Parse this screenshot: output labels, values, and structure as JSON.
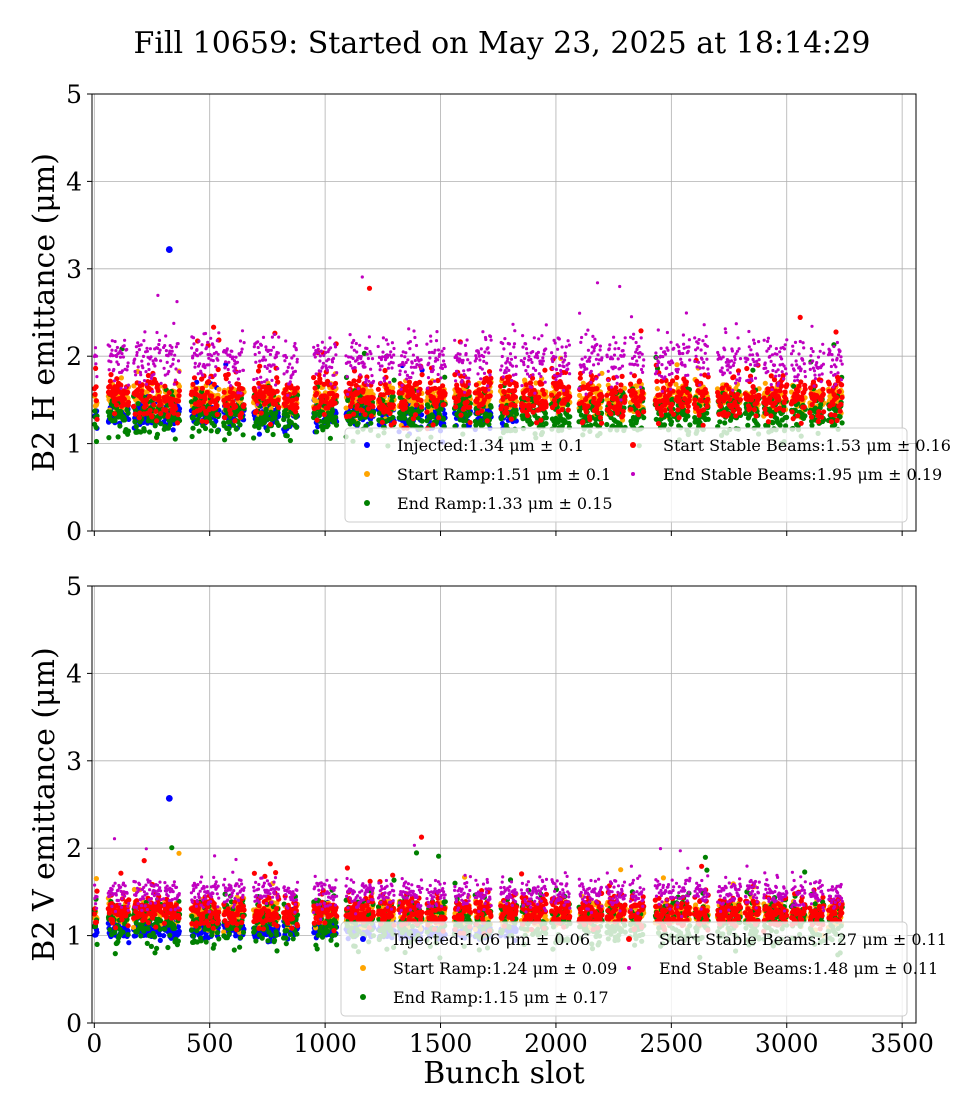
{
  "title": "Fill 10659: Started on May 23, 2025 at 18:14:29",
  "chart_data": [
    {
      "type": "scatter",
      "ylabel": "B2 H emittance (μm)",
      "xlabel": "",
      "xlim": [
        -10,
        3560
      ],
      "ylim": [
        0,
        5
      ],
      "xticks": [
        "0",
        "500",
        "1000",
        "1500",
        "2000",
        "2500",
        "3000",
        "3500"
      ],
      "yticks": [
        "0",
        "1",
        "2",
        "3",
        "4",
        "5"
      ],
      "grid": true,
      "legend_position": "lower-right",
      "trains": [
        [
          0,
          12
        ],
        [
          60,
          150
        ],
        [
          170,
          290
        ],
        [
          300,
          370
        ],
        [
          420,
          540
        ],
        [
          560,
          650
        ],
        [
          690,
          800
        ],
        [
          820,
          880
        ],
        [
          950,
          1050
        ],
        [
          1090,
          1210
        ],
        [
          1230,
          1300
        ],
        [
          1320,
          1420
        ],
        [
          1440,
          1520
        ],
        [
          1560,
          1630
        ],
        [
          1650,
          1720
        ],
        [
          1760,
          1830
        ],
        [
          1850,
          1960
        ],
        [
          1980,
          2060
        ],
        [
          2100,
          2200
        ],
        [
          2220,
          2300
        ],
        [
          2320,
          2380
        ],
        [
          2430,
          2510
        ],
        [
          2520,
          2580
        ],
        [
          2600,
          2660
        ],
        [
          2700,
          2800
        ],
        [
          2820,
          2880
        ],
        [
          2900,
          3000
        ],
        [
          3020,
          3080
        ],
        [
          3100,
          3160
        ],
        [
          3180,
          3240
        ]
      ],
      "outliers": {
        "x": [
          325
        ],
        "y": [
          3.22
        ],
        "series": "Injected"
      },
      "series": [
        {
          "name": "Injected",
          "legend": "Injected:1.34 μm ± 0.1",
          "color": "#0000ff",
          "mean": 1.34,
          "std": 0.1,
          "marker_size": 2.6,
          "extent": 1850
        },
        {
          "name": "Start Ramp",
          "legend": "Start Ramp:1.51 μm ± 0.1",
          "color": "#ffa500",
          "mean": 1.51,
          "std": 0.1,
          "marker_size": 2.6,
          "extent": 3240
        },
        {
          "name": "End Ramp",
          "legend": "End Ramp:1.33 μm ± 0.15",
          "color": "#008000",
          "mean": 1.33,
          "std": 0.15,
          "marker_size": 2.6,
          "extent": 3240
        },
        {
          "name": "Start Stable Beams",
          "legend": "Start Stable Beams:1.53 μm ± 0.16",
          "color": "#ff0000",
          "mean": 1.53,
          "std": 0.16,
          "marker_size": 2.6,
          "extent": 3240
        },
        {
          "name": "End Stable Beams",
          "legend": "End Stable Beams:1.95 μm ± 0.19",
          "color": "#c000c0",
          "mean": 1.95,
          "std": 0.19,
          "marker_size": 1.6,
          "extent": 3240
        }
      ]
    },
    {
      "type": "scatter",
      "ylabel": "B2 V emittance (μm)",
      "xlabel": "Bunch slot",
      "xlim": [
        -10,
        3560
      ],
      "ylim": [
        0,
        5
      ],
      "xticks": [
        "0",
        "500",
        "1000",
        "1500",
        "2000",
        "2500",
        "3000",
        "3500"
      ],
      "yticks": [
        "0",
        "1",
        "2",
        "3",
        "4",
        "5"
      ],
      "grid": true,
      "legend_position": "lower-right",
      "trains": [
        [
          0,
          12
        ],
        [
          60,
          150
        ],
        [
          170,
          290
        ],
        [
          300,
          370
        ],
        [
          420,
          540
        ],
        [
          560,
          650
        ],
        [
          690,
          800
        ],
        [
          820,
          880
        ],
        [
          950,
          1050
        ],
        [
          1090,
          1210
        ],
        [
          1230,
          1300
        ],
        [
          1320,
          1420
        ],
        [
          1440,
          1520
        ],
        [
          1560,
          1630
        ],
        [
          1650,
          1720
        ],
        [
          1760,
          1830
        ],
        [
          1850,
          1960
        ],
        [
          1980,
          2060
        ],
        [
          2100,
          2200
        ],
        [
          2220,
          2300
        ],
        [
          2320,
          2380
        ],
        [
          2430,
          2510
        ],
        [
          2520,
          2580
        ],
        [
          2600,
          2660
        ],
        [
          2700,
          2800
        ],
        [
          2820,
          2880
        ],
        [
          2900,
          3000
        ],
        [
          3020,
          3080
        ],
        [
          3100,
          3160
        ],
        [
          3180,
          3240
        ]
      ],
      "outliers": {
        "x": [
          325
        ],
        "y": [
          2.57
        ],
        "series": "Injected"
      },
      "series": [
        {
          "name": "Injected",
          "legend": "Injected:1.06 μm ± 0.06",
          "color": "#0000ff",
          "mean": 1.06,
          "std": 0.06,
          "marker_size": 2.6,
          "extent": 1850
        },
        {
          "name": "Start Ramp",
          "legend": "Start Ramp:1.24 μm ± 0.09",
          "color": "#ffa500",
          "mean": 1.24,
          "std": 0.09,
          "marker_size": 2.6,
          "extent": 3240
        },
        {
          "name": "End Ramp",
          "legend": "End Ramp:1.15 μm ± 0.17",
          "color": "#008000",
          "mean": 1.15,
          "std": 0.17,
          "marker_size": 2.6,
          "extent": 3240
        },
        {
          "name": "Start Stable Beams",
          "legend": "Start Stable Beams:1.27 μm ± 0.11",
          "color": "#ff0000",
          "mean": 1.27,
          "std": 0.11,
          "marker_size": 2.6,
          "extent": 3240
        },
        {
          "name": "End Stable Beams",
          "legend": "End Stable Beams:1.48 μm ± 0.11",
          "color": "#c000c0",
          "mean": 1.48,
          "std": 0.11,
          "marker_size": 1.6,
          "extent": 3240
        }
      ]
    }
  ]
}
